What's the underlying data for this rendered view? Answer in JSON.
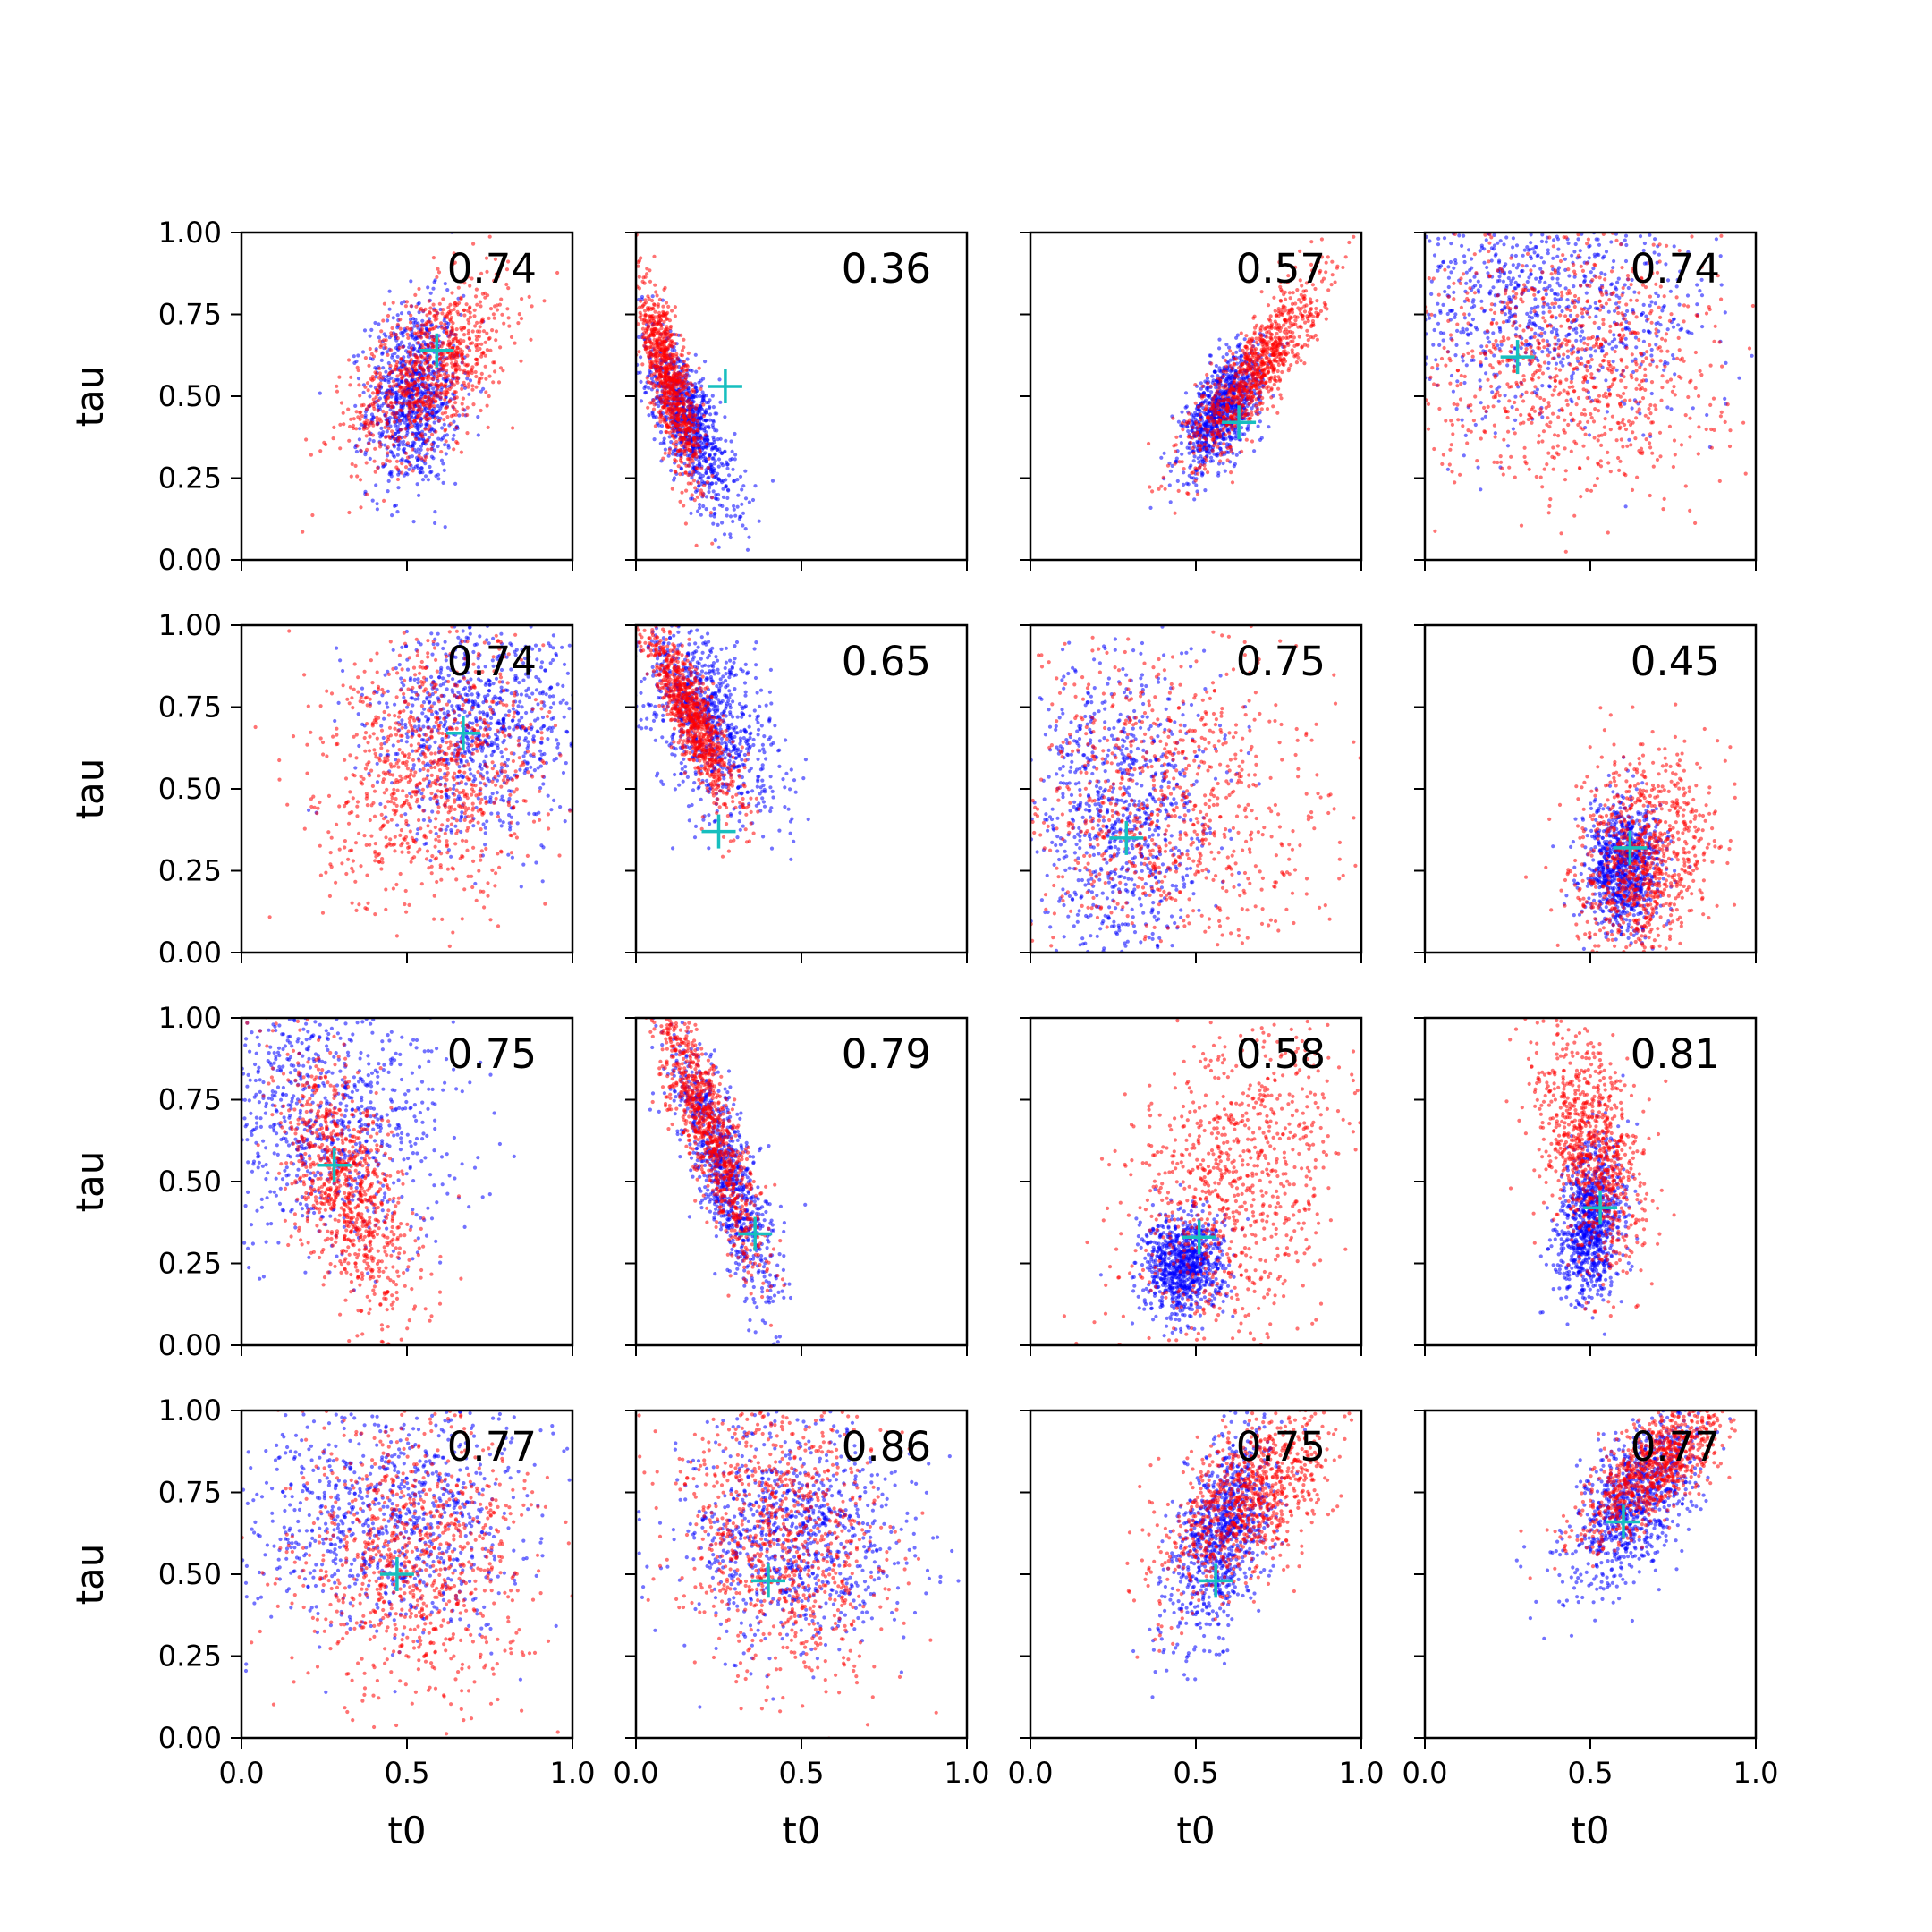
{
  "colors": {
    "series_a": "#0000ff",
    "series_b": "#ff0000",
    "truth_marker": "#17bfbf",
    "axes": "#000000"
  },
  "chart_data": {
    "type": "scatter",
    "layout": "4x4 grid",
    "xlabel": "t0",
    "ylabel": "tau",
    "xlim": [
      0,
      1
    ],
    "ylim": [
      0,
      1
    ],
    "xticks": [
      "0.0",
      "0.5",
      "1.0"
    ],
    "yticks": [
      "0.00",
      "0.25",
      "0.50",
      "0.75",
      "1.00"
    ],
    "series": [
      {
        "name": "blue samples",
        "color": "#0000ff"
      },
      {
        "name": "red samples",
        "color": "#ff0000"
      },
      {
        "name": "true value",
        "color": "#17bfbf",
        "marker": "+"
      }
    ],
    "panels": [
      {
        "label": "0.74",
        "truth": [
          0.59,
          0.64
        ],
        "blue": {
          "center": [
            0.52,
            0.5
          ],
          "spread": [
            0.07,
            0.14
          ],
          "rho": 0.1
        },
        "red": {
          "center": [
            0.57,
            0.58
          ],
          "spread": [
            0.12,
            0.14
          ],
          "rho": 0.55
        }
      },
      {
        "label": "0.36",
        "truth": [
          0.27,
          0.53
        ],
        "blue": {
          "center": [
            0.16,
            0.42
          ],
          "spread": [
            0.07,
            0.14
          ],
          "rho": -0.75
        },
        "red": {
          "center": [
            0.1,
            0.55
          ],
          "spread": [
            0.05,
            0.15
          ],
          "rho": -0.8
        }
      },
      {
        "label": "0.57",
        "truth": [
          0.63,
          0.42
        ],
        "blue": {
          "center": [
            0.58,
            0.46
          ],
          "spread": [
            0.06,
            0.09
          ],
          "rho": 0.6
        },
        "red": {
          "center": [
            0.68,
            0.58
          ],
          "spread": [
            0.1,
            0.14
          ],
          "rho": 0.85
        }
      },
      {
        "label": "0.74",
        "truth": [
          0.28,
          0.62
        ],
        "blue": {
          "center": [
            0.35,
            0.78
          ],
          "spread": [
            0.26,
            0.18
          ],
          "rho": 0.0
        },
        "red": {
          "center": [
            0.45,
            0.6
          ],
          "spread": [
            0.22,
            0.2
          ],
          "rho": 0.0
        }
      },
      {
        "label": "0.74",
        "truth": [
          0.67,
          0.67
        ],
        "blue": {
          "center": [
            0.72,
            0.7
          ],
          "spread": [
            0.16,
            0.17
          ],
          "rho": 0.0
        },
        "red": {
          "center": [
            0.58,
            0.55
          ],
          "spread": [
            0.17,
            0.2
          ],
          "rho": 0.1
        }
      },
      {
        "label": "0.65",
        "truth": [
          0.25,
          0.37
        ],
        "blue": {
          "center": [
            0.22,
            0.72
          ],
          "spread": [
            0.1,
            0.15
          ],
          "rho": -0.5
        },
        "red": {
          "center": [
            0.17,
            0.72
          ],
          "spread": [
            0.07,
            0.14
          ],
          "rho": -0.85
        }
      },
      {
        "label": "0.75",
        "truth": [
          0.29,
          0.35
        ],
        "blue": {
          "center": [
            0.27,
            0.42
          ],
          "spread": [
            0.14,
            0.24
          ],
          "rho": 0.0
        },
        "red": {
          "center": [
            0.4,
            0.42
          ],
          "spread": [
            0.24,
            0.26
          ],
          "rho": 0.0
        }
      },
      {
        "label": "0.45",
        "truth": [
          0.62,
          0.32
        ],
        "blue": {
          "center": [
            0.6,
            0.26
          ],
          "spread": [
            0.06,
            0.1
          ],
          "rho": 0.1
        },
        "red": {
          "center": [
            0.66,
            0.28
          ],
          "spread": [
            0.1,
            0.16
          ],
          "rho": 0.2
        }
      },
      {
        "label": "0.75",
        "truth": [
          0.28,
          0.55
        ],
        "blue": {
          "center": [
            0.25,
            0.7
          ],
          "spread": [
            0.2,
            0.2
          ],
          "rho": -0.1
        },
        "red": {
          "center": [
            0.32,
            0.48
          ],
          "spread": [
            0.1,
            0.2
          ],
          "rho": -0.6
        }
      },
      {
        "label": "0.79",
        "truth": [
          0.36,
          0.34
        ],
        "blue": {
          "center": [
            0.26,
            0.55
          ],
          "spread": [
            0.08,
            0.2
          ],
          "rho": -0.8
        },
        "red": {
          "center": [
            0.22,
            0.65
          ],
          "spread": [
            0.08,
            0.2
          ],
          "rho": -0.85
        }
      },
      {
        "label": "0.58",
        "truth": [
          0.51,
          0.33
        ],
        "blue": {
          "center": [
            0.46,
            0.24
          ],
          "spread": [
            0.06,
            0.08
          ],
          "rho": 0.0
        },
        "red": {
          "center": [
            0.62,
            0.5
          ],
          "spread": [
            0.16,
            0.25
          ],
          "rho": 0.3
        }
      },
      {
        "label": "0.81",
        "truth": [
          0.53,
          0.42
        ],
        "blue": {
          "center": [
            0.5,
            0.38
          ],
          "spread": [
            0.05,
            0.12
          ],
          "rho": 0.2
        },
        "red": {
          "center": [
            0.5,
            0.6
          ],
          "spread": [
            0.08,
            0.18
          ],
          "rho": -0.4
        }
      },
      {
        "label": "0.77",
        "truth": [
          0.47,
          0.5
        ],
        "blue": {
          "center": [
            0.45,
            0.68
          ],
          "spread": [
            0.22,
            0.18
          ],
          "rho": 0.0
        },
        "red": {
          "center": [
            0.52,
            0.55
          ],
          "spread": [
            0.18,
            0.22
          ],
          "rho": 0.0
        }
      },
      {
        "label": "0.86",
        "truth": [
          0.4,
          0.48
        ],
        "blue": {
          "center": [
            0.48,
            0.62
          ],
          "spread": [
            0.16,
            0.18
          ],
          "rho": 0.0
        },
        "red": {
          "center": [
            0.45,
            0.6
          ],
          "spread": [
            0.16,
            0.22
          ],
          "rho": -0.2
        }
      },
      {
        "label": "0.75",
        "truth": [
          0.56,
          0.48
        ],
        "blue": {
          "center": [
            0.58,
            0.62
          ],
          "spread": [
            0.08,
            0.16
          ],
          "rho": 0.5
        },
        "red": {
          "center": [
            0.65,
            0.72
          ],
          "spread": [
            0.13,
            0.14
          ],
          "rho": 0.55
        }
      },
      {
        "label": "0.77",
        "truth": [
          0.6,
          0.66
        ],
        "blue": {
          "center": [
            0.64,
            0.74
          ],
          "spread": [
            0.1,
            0.14
          ],
          "rho": 0.6
        },
        "red": {
          "center": [
            0.7,
            0.83
          ],
          "spread": [
            0.12,
            0.12
          ],
          "rho": 0.75
        }
      }
    ]
  }
}
